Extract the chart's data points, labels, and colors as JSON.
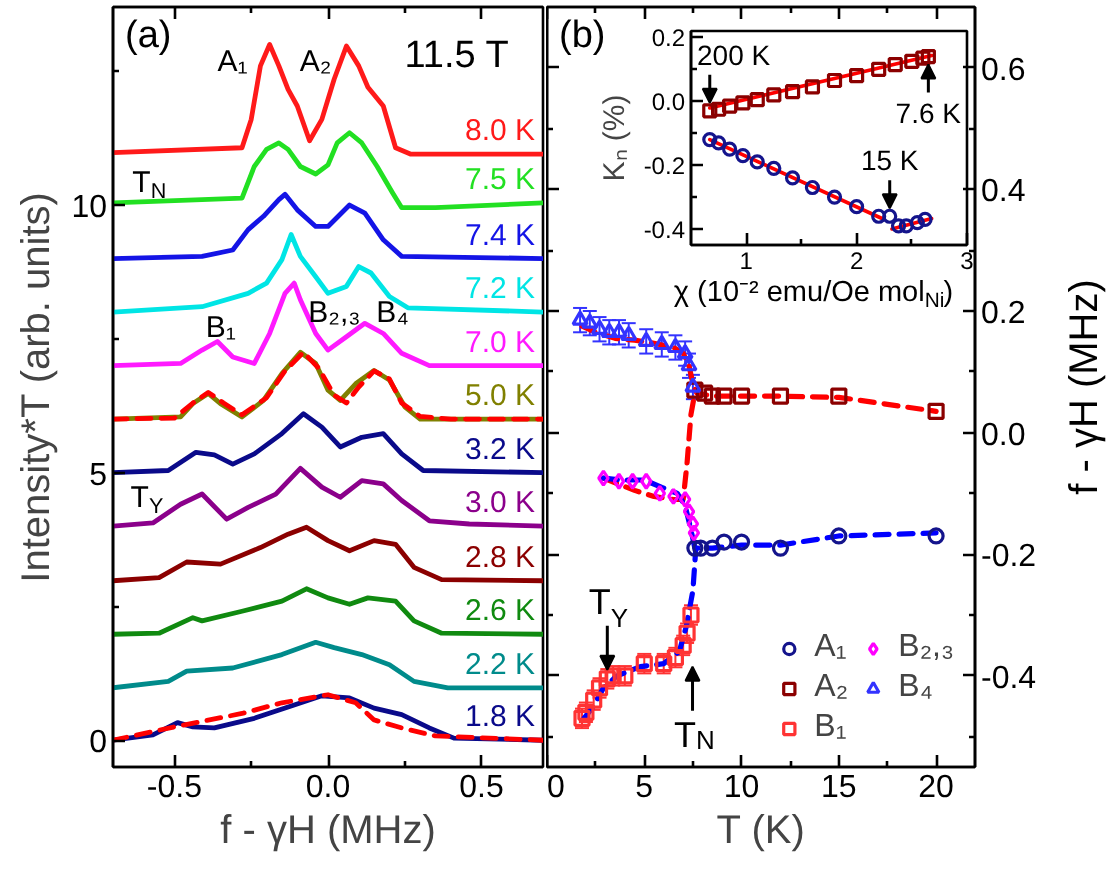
{
  "chart_data": [
    {
      "type": "line",
      "title": "(a)",
      "xlabel": "f - γH (MHz)",
      "ylabel": "Intensity*T (arb. units)",
      "xlim": [
        -0.7,
        0.7
      ],
      "ylim": [
        -0.5,
        13.7
      ],
      "xticks": [
        -0.5,
        {
          "value": -0.25,
          "label": null
        },
        {
          "value": 0,
          "label": "0.0"
        },
        {
          "value": 0.25,
          "label": null
        },
        0.5
      ],
      "yticks": [
        0,
        {
          "value": 2.5,
          "label": null
        },
        5,
        {
          "value": 7.5,
          "label": null
        },
        10,
        {
          "value": 12.5,
          "label": null
        }
      ],
      "annotations": [
        "11.5 T",
        "A₁",
        "A₂",
        "B₁",
        "B₂,₃",
        "B₄",
        "T$_{N}$",
        "T$_{Y}$"
      ],
      "series": [
        {
          "name": "8.0 K",
          "color": "#ff1a1a",
          "x": [
            -0.7,
            -0.28,
            -0.25,
            -0.22,
            -0.19,
            -0.16,
            -0.13,
            -0.1,
            -0.06,
            -0.02,
            0.02,
            0.06,
            0.1,
            0.13,
            0.18,
            0.22,
            0.27,
            0.7
          ],
          "values": [
            10.98,
            11.07,
            11.6,
            12.6,
            13.0,
            12.6,
            12.16,
            11.85,
            11.2,
            11.6,
            12.35,
            12.97,
            12.6,
            12.2,
            11.85,
            11.07,
            10.95,
            10.95
          ]
        },
        {
          "name": "7.5 K",
          "color": "#22e022",
          "x": [
            -0.7,
            -0.41,
            -0.28,
            -0.24,
            -0.2,
            -0.16,
            -0.13,
            -0.09,
            -0.04,
            0.0,
            0.03,
            0.07,
            0.11,
            0.16,
            0.21,
            0.24,
            0.35,
            0.7
          ],
          "values": [
            10.04,
            10.1,
            10.13,
            10.72,
            11.04,
            11.16,
            11.04,
            10.72,
            10.58,
            10.75,
            11.16,
            11.35,
            11.16,
            10.72,
            10.23,
            9.95,
            9.95,
            10.04
          ]
        },
        {
          "name": "7.4 K",
          "color": "#1414e6",
          "x": [
            -0.7,
            -0.41,
            -0.31,
            -0.26,
            -0.21,
            -0.16,
            -0.14,
            -0.1,
            -0.04,
            0.0,
            0.07,
            0.12,
            0.18,
            0.24,
            0.7
          ],
          "values": [
            9.0,
            9.04,
            9.16,
            9.54,
            9.79,
            10.1,
            10.2,
            9.91,
            9.6,
            9.6,
            10.0,
            9.85,
            9.35,
            9.04,
            9.0
          ]
        },
        {
          "name": "7.2 K",
          "color": "#00e5e5",
          "x": [
            -0.7,
            -0.41,
            -0.26,
            -0.2,
            -0.15,
            -0.12,
            -0.09,
            -0.04,
            0.0,
            0.06,
            0.1,
            0.14,
            0.2,
            0.26,
            0.7
          ],
          "values": [
            8.0,
            8.1,
            8.35,
            8.54,
            8.98,
            9.45,
            9.04,
            8.66,
            8.35,
            8.48,
            8.85,
            8.73,
            8.29,
            8.08,
            8.0
          ]
        },
        {
          "name": "7.0 K",
          "color": "#ff1aff",
          "x": [
            -0.7,
            -0.48,
            -0.41,
            -0.36,
            -0.31,
            -0.24,
            -0.19,
            -0.14,
            -0.11,
            -0.09,
            -0.04,
            0.0,
            0.06,
            0.12,
            0.18,
            0.24,
            0.33,
            0.7
          ],
          "values": [
            7.0,
            7.04,
            7.29,
            7.45,
            7.16,
            7.04,
            7.6,
            8.35,
            8.54,
            8.23,
            7.6,
            7.29,
            7.54,
            7.79,
            7.6,
            7.23,
            7.0,
            7.0
          ]
        },
        {
          "name": "5.0 K",
          "color": "#808000",
          "x": [
            -0.7,
            -0.48,
            -0.44,
            -0.39,
            -0.35,
            -0.28,
            -0.21,
            -0.15,
            -0.09,
            -0.04,
            0.0,
            0.04,
            0.09,
            0.15,
            0.2,
            0.25,
            0.3,
            0.7
          ],
          "values": [
            6.0,
            6.04,
            6.29,
            6.48,
            6.29,
            6.04,
            6.35,
            6.85,
            7.25,
            7.04,
            6.54,
            6.35,
            6.66,
            6.91,
            6.73,
            6.23,
            6.0,
            6.0
          ]
        },
        {
          "type": "line",
          "line_style": "dashed",
          "color": "#ff0000",
          "x": [
            -0.7,
            -0.5,
            -0.44,
            -0.39,
            -0.34,
            -0.28,
            -0.2,
            -0.14,
            -0.08,
            -0.03,
            0.02,
            0.06,
            0.1,
            0.15,
            0.2,
            0.24,
            0.3,
            0.4,
            0.7
          ],
          "values": [
            6.0,
            6.02,
            6.3,
            6.5,
            6.3,
            6.08,
            6.4,
            6.9,
            7.25,
            6.95,
            6.45,
            6.3,
            6.6,
            6.9,
            6.75,
            6.3,
            6.05,
            6.0,
            6.0
          ]
        },
        {
          "name": "3.2 K",
          "color": "#0a0a8a",
          "x": [
            -0.7,
            -0.52,
            -0.43,
            -0.37,
            -0.31,
            -0.24,
            -0.15,
            -0.08,
            -0.02,
            0.04,
            0.11,
            0.18,
            0.24,
            0.31,
            0.7
          ],
          "values": [
            5.0,
            5.04,
            5.38,
            5.33,
            5.16,
            5.35,
            5.73,
            6.1,
            5.85,
            5.48,
            5.66,
            5.73,
            5.35,
            5.04,
            5.0
          ]
        },
        {
          "name": "3.0 K",
          "color": "#8b008b",
          "x": [
            -0.7,
            -0.57,
            -0.48,
            -0.41,
            -0.33,
            -0.26,
            -0.17,
            -0.09,
            -0.02,
            0.04,
            0.11,
            0.18,
            0.24,
            0.33,
            0.46,
            0.7
          ],
          "values": [
            4.0,
            4.06,
            4.41,
            4.6,
            4.13,
            4.35,
            4.6,
            5.08,
            4.73,
            4.54,
            4.85,
            4.79,
            4.48,
            4.1,
            4.04,
            4.0
          ]
        },
        {
          "name": "2.8 K",
          "color": "#8b0000",
          "x": [
            -0.7,
            -0.55,
            -0.46,
            -0.35,
            -0.22,
            -0.13,
            -0.07,
            0.0,
            0.07,
            0.15,
            0.22,
            0.28,
            0.37,
            0.7
          ],
          "values": [
            2.98,
            3.04,
            3.33,
            3.29,
            3.6,
            3.85,
            3.98,
            3.73,
            3.54,
            3.73,
            3.66,
            3.23,
            3.0,
            2.98
          ]
        },
        {
          "name": "2.6 K",
          "color": "#108a10",
          "x": [
            -0.7,
            -0.55,
            -0.44,
            -0.41,
            -0.28,
            -0.15,
            -0.07,
            0.0,
            0.07,
            0.13,
            0.22,
            0.28,
            0.37,
            0.7
          ],
          "values": [
            1.98,
            2.0,
            2.29,
            2.23,
            2.41,
            2.6,
            2.83,
            2.66,
            2.54,
            2.66,
            2.6,
            2.23,
            2.0,
            1.98
          ]
        },
        {
          "name": "2.2 K",
          "color": "#008b8b",
          "x": [
            -0.7,
            -0.52,
            -0.46,
            -0.31,
            -0.15,
            -0.04,
            0.02,
            0.11,
            0.2,
            0.28,
            0.39,
            0.7
          ],
          "values": [
            0.98,
            1.1,
            1.29,
            1.35,
            1.6,
            1.83,
            1.73,
            1.6,
            1.41,
            1.1,
            0.98,
            0.98
          ]
        },
        {
          "name": "1.8 K",
          "color": "#0a0a8a",
          "x": [
            -0.7,
            -0.57,
            -0.49,
            -0.44,
            -0.37,
            -0.24,
            -0.11,
            -0.02,
            0.07,
            0.15,
            0.24,
            0.33,
            0.41,
            0.7
          ],
          "values": [
            0.0,
            0.1,
            0.33,
            0.25,
            0.23,
            0.41,
            0.66,
            0.83,
            0.79,
            0.6,
            0.48,
            0.23,
            0.04,
            0.0
          ]
        },
        {
          "type": "line",
          "line_style": "dashed",
          "color": "#ff0000",
          "x": [
            -0.7,
            -0.5,
            -0.28,
            -0.15,
            0.0,
            0.09,
            0.15,
            0.24,
            0.35,
            0.7
          ],
          "values": [
            0.0,
            0.25,
            0.5,
            0.7,
            0.85,
            0.7,
            0.38,
            0.23,
            0.08,
            0.0
          ]
        }
      ]
    },
    {
      "type": "scatter",
      "title": "(b)",
      "xlabel": "T (K)",
      "ylabel": "f - γH (MHz)",
      "xlim": [
        0,
        22
      ],
      "ylim": [
        -0.55,
        0.7
      ],
      "xticks": [
        0,
        {
          "value": 2.5,
          "label": null
        },
        5,
        {
          "value": 7.5,
          "label": null
        },
        10,
        {
          "value": 12.5,
          "label": null
        },
        15,
        {
          "value": 17.5,
          "label": null
        },
        20
      ],
      "yticks": [
        {
          "value": -0.5,
          "label": null
        },
        -0.4,
        {
          "value": -0.3,
          "label": null
        },
        -0.2,
        {
          "value": -0.1,
          "label": null
        },
        {
          "value": 0,
          "label": "0.0"
        },
        {
          "value": 0.1,
          "label": null
        },
        0.2,
        {
          "value": 0.3,
          "label": null
        },
        0.4,
        {
          "value": 0.5,
          "label": null
        },
        0.6
      ],
      "legend": "bottom right",
      "annotations": [
        "T$_{N}$",
        {
          "text": "T$_{Y}$",
          "x": 3.1,
          "y": -0.405
        }
      ],
      "series": [
        {
          "type": "line",
          "line_style": "dashed",
          "color": "#ff0000",
          "x": [
            1.8,
            2.5,
            3.5,
            4.5,
            5.5,
            6.5,
            7.0,
            7.3,
            7.5,
            7.7,
            8.5,
            10,
            12,
            15,
            20
          ],
          "values": [
            0.175,
            0.165,
            0.155,
            0.152,
            0.147,
            0.14,
            0.13,
            0.11,
            0.08,
            0.065,
            0.06,
            0.06,
            0.06,
            0.058,
            0.035
          ]
        },
        {
          "type": "line",
          "line_style": "dashed",
          "color": "#ff0000",
          "x": [
            2.9,
            3.7,
            4.5,
            5.5,
            6.5,
            7.0,
            7.2,
            7.4,
            7.6
          ],
          "values": [
            -0.075,
            -0.085,
            -0.095,
            -0.105,
            -0.11,
            -0.11,
            -0.05,
            0.03,
            0.065
          ]
        },
        {
          "type": "line",
          "line_style": "dashed",
          "color": "#0000ff",
          "x": [
            1.9,
            2.4,
            2.9,
            3.6,
            4.8,
            6.0,
            6.8,
            7.15,
            7.5,
            7.65,
            8.5,
            10,
            12,
            15,
            20
          ],
          "values": [
            -0.47,
            -0.45,
            -0.42,
            -0.4,
            -0.385,
            -0.38,
            -0.36,
            -0.32,
            -0.26,
            -0.19,
            -0.19,
            -0.185,
            -0.185,
            -0.17,
            -0.165
          ]
        },
        {
          "type": "line",
          "line_style": "dashed",
          "color": "#0000ff",
          "x": [
            2.9,
            3.8,
            5.0,
            5.9,
            6.7,
            7.1,
            7.4,
            7.6
          ],
          "values": [
            -0.075,
            -0.078,
            -0.078,
            -0.09,
            -0.1,
            -0.12,
            -0.16,
            -0.19
          ]
        },
        {
          "name": "A₁",
          "color": "#14148c",
          "marker": "circle",
          "x": [
            7.6,
            7.9,
            8.5,
            9.1,
            10,
            12,
            15,
            20
          ],
          "values": [
            -0.19,
            -0.19,
            -0.19,
            -0.18,
            -0.18,
            -0.19,
            -0.17,
            -0.17
          ]
        },
        {
          "name": "A₂",
          "color": "#8b0000",
          "marker": "square",
          "x": [
            7.6,
            8.1,
            8.5,
            9.1,
            10,
            12,
            15,
            20
          ],
          "values": [
            0.07,
            0.065,
            0.06,
            0.06,
            0.06,
            0.06,
            0.06,
            0.035
          ]
        },
        {
          "name": "B₁",
          "color": "#ff3333",
          "marker": "square",
          "x": [
            1.8,
            2.0,
            2.4,
            2.7,
            3.1,
            3.4,
            4.0,
            5.0,
            6.0,
            6.6,
            7.0,
            7.2,
            7.4
          ],
          "values": [
            -0.47,
            -0.46,
            -0.44,
            -0.42,
            -0.405,
            -0.4,
            -0.4,
            -0.38,
            -0.38,
            -0.37,
            -0.35,
            -0.33,
            -0.3
          ],
          "errors": [
            0.016,
            0.016,
            0.016,
            0.016,
            0.016,
            0.016,
            0.016,
            0.016,
            0.016,
            0.016,
            0.016,
            0.016,
            0.016
          ]
        },
        {
          "name": "B₂,₃",
          "color": "#ff00ff",
          "marker": "diamond",
          "x": [
            2.9,
            3.7,
            4.4,
            5.1,
            5.8,
            6.5,
            7.1,
            7.3,
            7.5,
            7.55
          ],
          "values": [
            -0.075,
            -0.08,
            -0.08,
            -0.08,
            -0.1,
            -0.105,
            -0.11,
            -0.13,
            -0.15,
            -0.165
          ]
        },
        {
          "name": "B₄",
          "color": "#3333ff",
          "marker": "triangle",
          "x": [
            1.7,
            2.2,
            2.7,
            3.2,
            3.7,
            4.2,
            5.1,
            5.9,
            6.6,
            7.1,
            7.3,
            7.5
          ],
          "values": [
            0.185,
            0.18,
            0.17,
            0.165,
            0.165,
            0.16,
            0.15,
            0.145,
            0.14,
            0.13,
            0.11,
            0.075
          ],
          "errors": [
            0.02,
            0.02,
            0.02,
            0.02,
            0.02,
            0.02,
            0.02,
            0.02,
            0.02,
            0.02,
            0.02,
            0.02
          ]
        }
      ]
    },
    {
      "type": "scatter",
      "xlabel": "χ (10⁻² emu/Oe mol$_{Ni}$)",
      "ylabel": "Kₙ (%)",
      "xlim": [
        0.5,
        3
      ],
      "ylim": [
        -0.45,
        0.22
      ],
      "xticks": [
        1,
        {
          "value": 1.5,
          "label": null
        },
        2,
        {
          "value": 2.5,
          "label": null
        },
        3
      ],
      "yticks": [
        -0.4,
        {
          "value": -0.3,
          "label": null
        },
        -0.2,
        {
          "value": -0.1,
          "label": null
        },
        {
          "value": 0,
          "label": "0.0"
        },
        {
          "value": 0.1,
          "label": null
        },
        0.2
      ],
      "annotations": [
        {
          "text": "200 K",
          "x": 0.67,
          "y": -0.03
        },
        {
          "text": "7.6 K",
          "x": 2.65,
          "y": 0.14
        },
        {
          "text": "15 K",
          "x": 2.3,
          "y": -0.36
        }
      ],
      "series": [
        {
          "type": "line",
          "color": "#ff0000",
          "x": [
            0.67,
            2.68
          ],
          "values": [
            -0.021,
            0.143
          ]
        },
        {
          "type": "line",
          "color": "#ff0000",
          "x": [
            0.67,
            2.23
          ],
          "values": [
            -0.12,
            -0.367
          ]
        },
        {
          "type": "line",
          "color": "#ff0000",
          "x": [
            2.32,
            2.68
          ],
          "values": [
            -0.4,
            -0.367
          ]
        },
        {
          "color": "#8b0000",
          "marker": "square",
          "x": [
            0.67,
            0.75,
            0.85,
            0.97,
            1.1,
            1.25,
            1.42,
            1.6,
            1.8,
            2.0,
            2.2,
            2.35,
            2.5,
            2.6,
            2.65
          ],
          "values": [
            -0.03,
            -0.025,
            -0.015,
            -0.005,
            0.005,
            0.02,
            0.03,
            0.045,
            0.065,
            0.08,
            0.1,
            0.115,
            0.125,
            0.135,
            0.14
          ]
        },
        {
          "color": "#14148c",
          "marker": "circle",
          "x": [
            0.67,
            0.75,
            0.85,
            0.97,
            1.1,
            1.25,
            1.42,
            1.6,
            1.8,
            2.0,
            2.2,
            2.3,
            2.38,
            2.45,
            2.55,
            2.62
          ],
          "values": [
            -0.12,
            -0.13,
            -0.15,
            -0.17,
            -0.19,
            -0.21,
            -0.24,
            -0.27,
            -0.3,
            -0.33,
            -0.36,
            -0.36,
            -0.39,
            -0.39,
            -0.38,
            -0.37
          ]
        }
      ]
    }
  ]
}
